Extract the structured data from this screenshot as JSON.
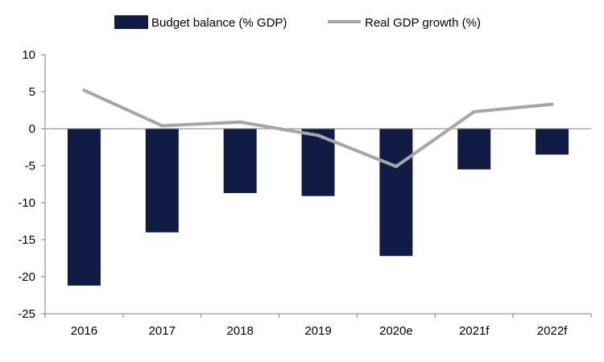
{
  "chart_data": {
    "type": "bar",
    "categories": [
      "2016",
      "2017",
      "2018",
      "2019",
      "2020e",
      "2021f",
      "2022f"
    ],
    "series": [
      {
        "name": "Budget balance (% GDP)",
        "type": "bar",
        "color": "#111c44",
        "values": [
          -21.2,
          -14.0,
          -8.7,
          -9.1,
          -17.2,
          -5.5,
          -3.5
        ]
      },
      {
        "name": "Real GDP growth (%)",
        "type": "line",
        "color": "#a6a6a6",
        "values": [
          5.2,
          0.4,
          0.9,
          -0.9,
          -5.1,
          2.3,
          3.3
        ]
      }
    ],
    "ylim": [
      -25,
      10
    ],
    "yticks": [
      10,
      5,
      0,
      -5,
      -10,
      -15,
      -20,
      -25
    ],
    "xlabel": "",
    "ylabel": "",
    "grid": false,
    "legend_position": "top-center"
  }
}
